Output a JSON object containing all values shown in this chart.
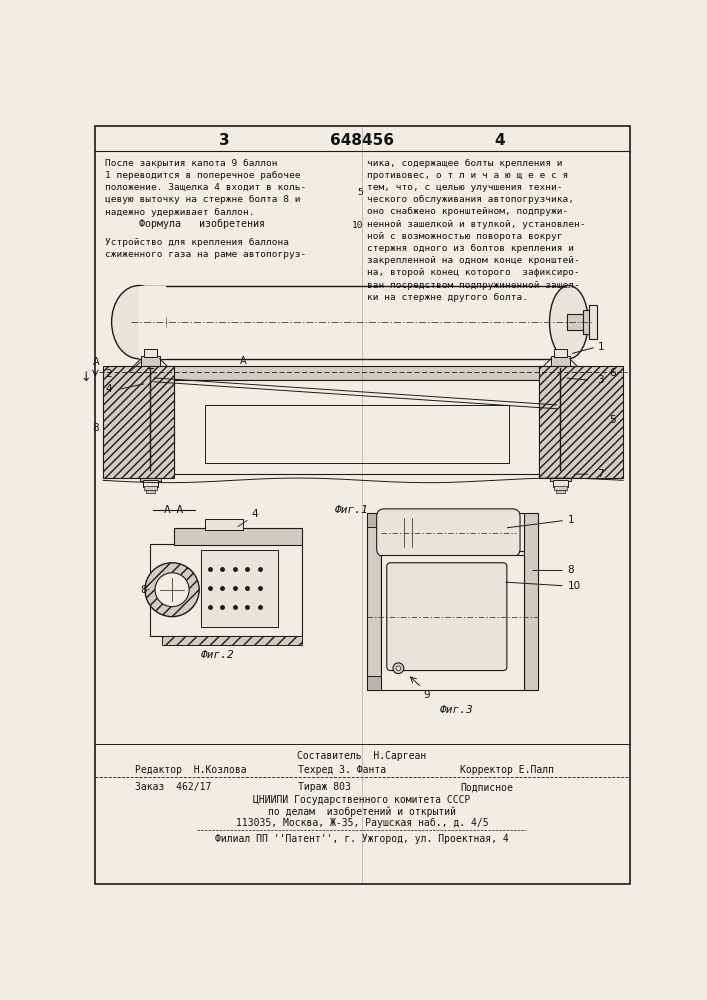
{
  "page_color": "#f0ede5",
  "title_patent": "648456",
  "page_left": "3",
  "page_right": "4",
  "text_left_top": "После закрытия капота 9 баллон\n1 переводится в поперечное рабочее\nположение. Защелка 4 входит в коль-\nцевую выточку на стержне болта 8 и\nнадежно удерживает баллон.",
  "formula_header": "Формула   изобретения",
  "formula_text": "Устройство для крепления баллона\nсжиженного газа на раме автопогруз-",
  "text_right_top": "чика, содержащее болты крепления и\nпротивовес, о т л и ч а ю щ е е с я\nтем, что, с целью улучшения техни-\nческого обслуживания автопогрузчика,\nоно снабжено кронштейном, подпружи-\nненной зашелкой и втулкой, установлен-\nной с возможностью поворота вокруг\nстержня одного из болтов крепления и\nзакрепленной на одном конце кронштей-\nна, второй конец которого  зафиксиро-\nван посредством подпружиненной зашел-\nки на стержне другого болта.",
  "bottom_text1": "Составитель  Н.Саргеан",
  "bottom_text2": "Редактор  Н.Козлова",
  "bottom_text3": "Техред З. Фанта",
  "bottom_text3b": "Тираж 803",
  "bottom_text4": "Корректор Е.Палп",
  "bottom_text5": "Заказ  462/17",
  "bottom_text6": "Подписное",
  "bottom_text7": "ЦНИИПИ Государственного комитета СССР",
  "bottom_text8": "по делам  изобретений и открытий",
  "bottom_text9": "113035, Москва, Ж-35, Раушская наб., д. 4/5",
  "bottom_text10": "Филиал ПП ''Патент'', г. Ужгород, ул. Проектная, 4",
  "fig1_label": "Фиг.1",
  "fig2_label": "Фиг.2",
  "fig3_label": "Фиг.3",
  "aa_label": "А-А",
  "line_color": "#1a1a1a",
  "text_color": "#111111",
  "hatch_color": "#555555",
  "fill_light": "#e8e4dc",
  "fill_mid": "#d0ccc4",
  "fill_dark": "#b8b4ac"
}
